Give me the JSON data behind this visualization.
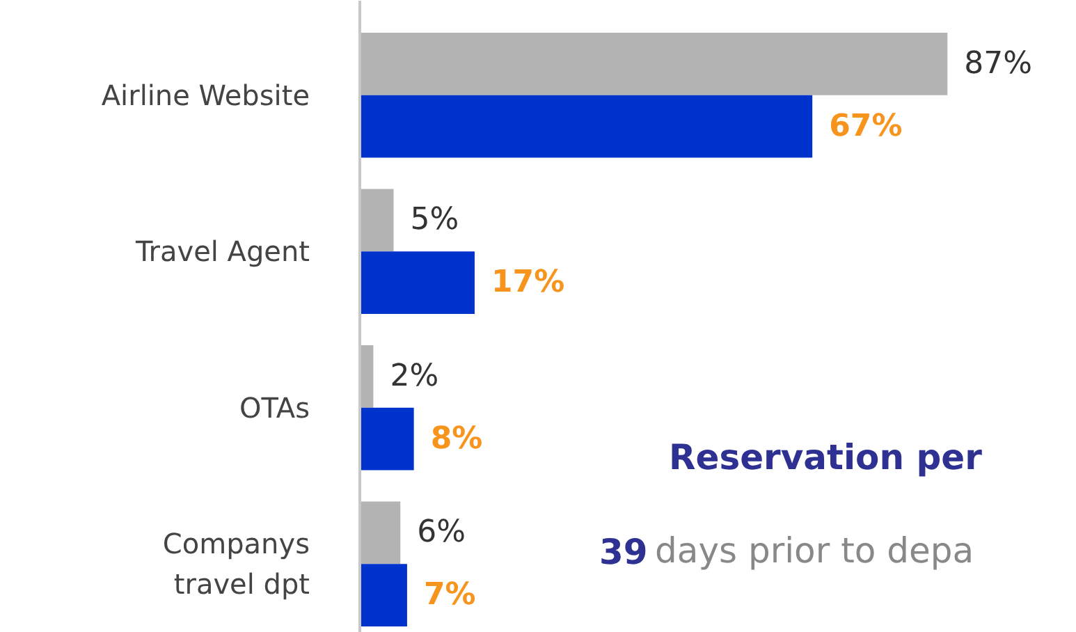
{
  "chart_data": {
    "type": "bar",
    "orientation": "horizontal",
    "categories": [
      "Airline Website",
      "Travel Agent",
      "OTAs",
      "Companys\ntravel dpt"
    ],
    "series": [
      {
        "color": "#b3b3b3",
        "values": [
          87,
          5,
          2,
          6
        ],
        "value_labels": [
          "87%",
          "5%",
          "2%",
          "6%"
        ]
      },
      {
        "color": "#0033cc",
        "values": [
          67,
          17,
          8,
          7
        ],
        "value_labels": [
          "67%",
          "17%",
          "8%",
          "7%"
        ]
      }
    ],
    "tick_labels": "y",
    "grid": false,
    "annotations": [
      "Reservation per",
      "39 days prior to depa"
    ]
  }
}
